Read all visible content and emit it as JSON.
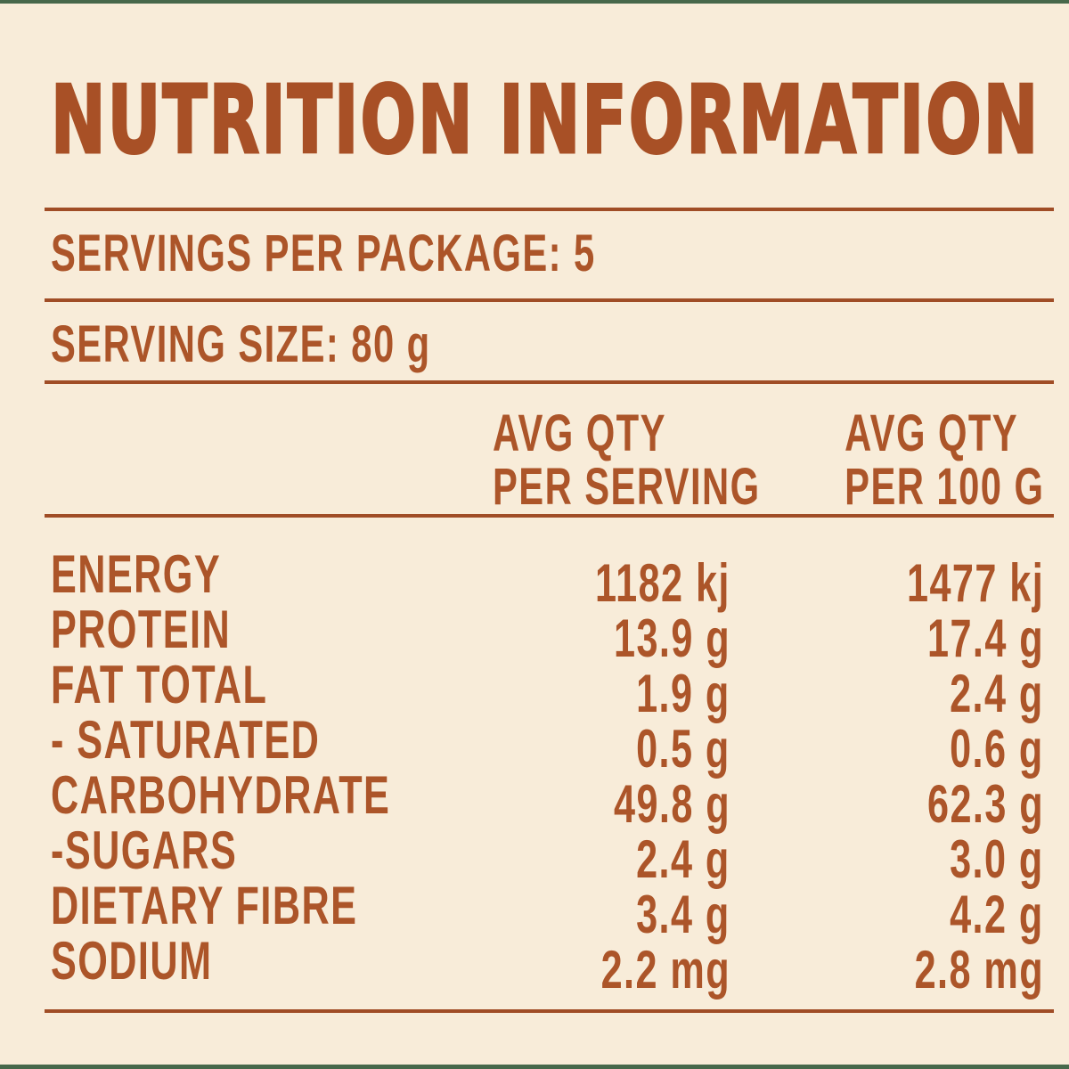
{
  "colors": {
    "background": "#f8ecd9",
    "text": "#ac5529",
    "title": "#a85026",
    "rule": "#a04d26",
    "edge": "#47684b"
  },
  "title": "NUTRITION INFORMATION",
  "meta": {
    "servings_line": "SERVINGS PER PACKAGE: 5",
    "serving_size_line": "SERVING SIZE: 80 g"
  },
  "table": {
    "header": {
      "per_serving": {
        "line1": "AVG QTY",
        "line2": "PER SERVING"
      },
      "per_100g": {
        "line1": "AVG QTY",
        "line2": "PER 100 G"
      }
    },
    "rows": [
      {
        "label": "ENERGY",
        "per_serving": "1182 kj",
        "per_100g": "1477 kj"
      },
      {
        "label": "PROTEIN",
        "per_serving": "13.9 g",
        "per_100g": "17.4 g"
      },
      {
        "label": "FAT TOTAL",
        "per_serving": "1.9 g",
        "per_100g": "2.4 g"
      },
      {
        "label": "- SATURATED",
        "per_serving": "0.5 g",
        "per_100g": "0.6 g"
      },
      {
        "label": "CARBOHYDRATE",
        "per_serving": "49.8 g",
        "per_100g": "62.3 g"
      },
      {
        "label": "-SUGARS",
        "per_serving": "2.4 g",
        "per_100g": "3.0 g"
      },
      {
        "label": "DIETARY FIBRE",
        "per_serving": "3.4 g",
        "per_100g": "4.2 g"
      },
      {
        "label": "SODIUM",
        "per_serving": "2.2 mg",
        "per_100g": "2.8 mg"
      }
    ]
  }
}
